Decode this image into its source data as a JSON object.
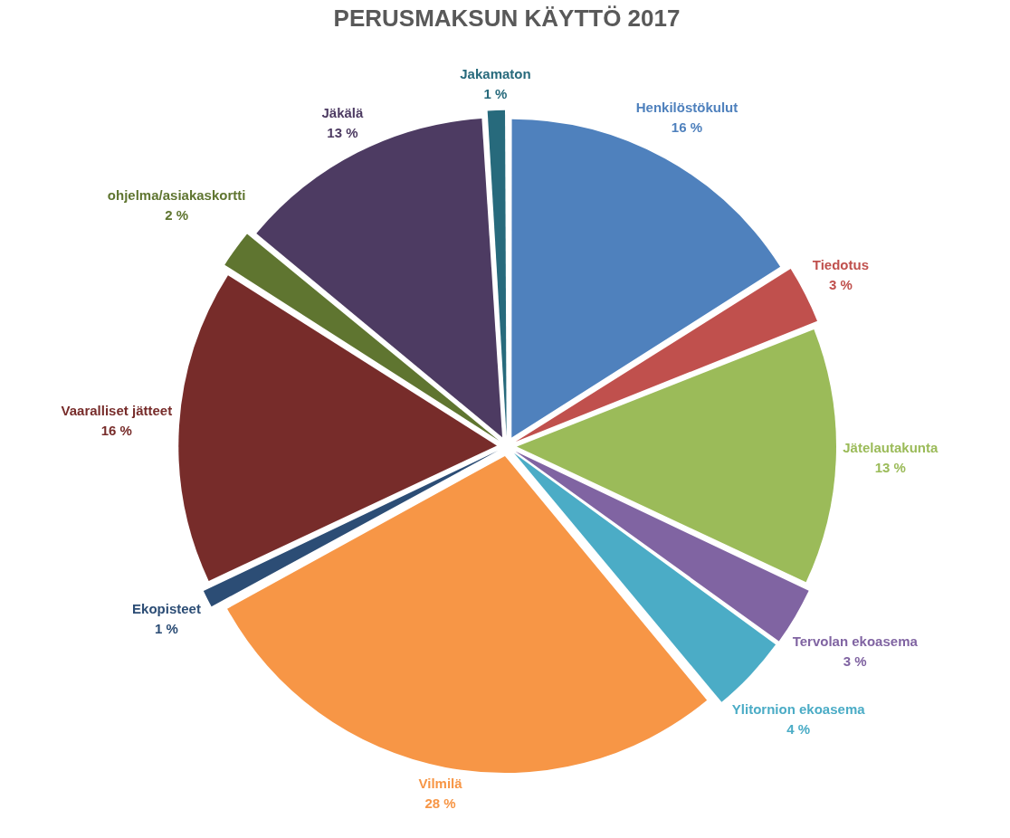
{
  "chart_data": {
    "type": "pie",
    "title": "PERUSMAKSUN KÄYTTÖ 2017",
    "categories": [
      "Henkilöstökulut",
      "Tiedotus",
      "Jätelautakunta",
      "Tervolan ekoasema",
      "Ylitornion ekoasema",
      "Vilmilä",
      "Ekopisteet",
      "Vaaralliset jätteet",
      "ohjelma/asiakaskortti",
      "Jäkälä",
      "Jakamaton"
    ],
    "values": [
      16,
      3,
      13,
      3,
      4,
      28,
      1,
      16,
      2,
      13,
      1
    ],
    "colors": [
      "#4f81bd",
      "#c0504d",
      "#9bbb59",
      "#8064a2",
      "#4bacc6",
      "#f79646",
      "#2c4d75",
      "#772c2a",
      "#5f7530",
      "#4d3b62",
      "#276a7c"
    ],
    "value_labels": [
      "16 %",
      "3 %",
      "13 %",
      "3 %",
      "4 %",
      "28 %",
      "1 %",
      "16 %",
      "2 %",
      "13 %",
      "1 %"
    ]
  }
}
